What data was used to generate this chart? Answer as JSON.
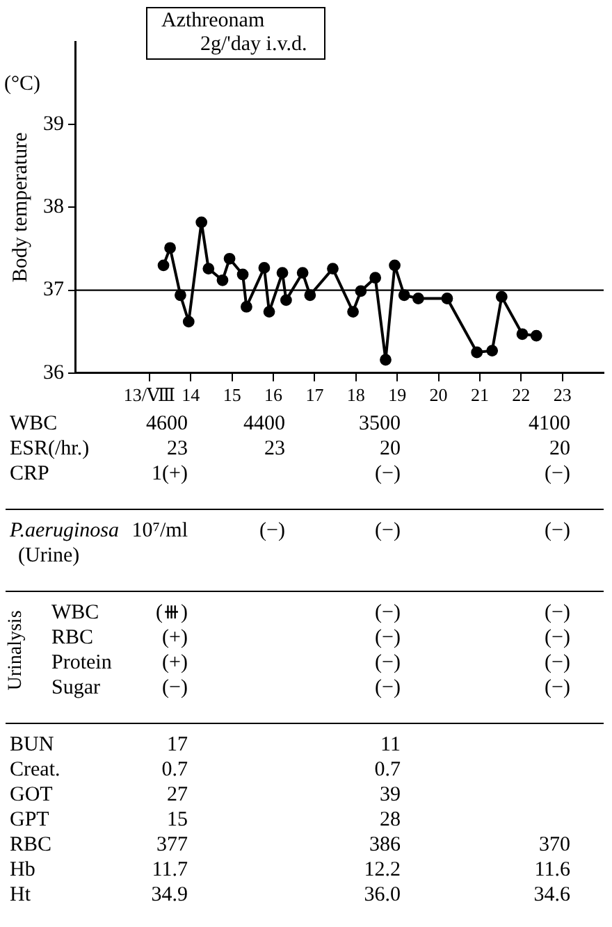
{
  "chart_data": [
    {
      "type": "line",
      "title": "Azthreonam\n2g/'day i.v.d.",
      "ylabel": "Body temperature",
      "annotations": [
        "(°C)"
      ],
      "x": [
        13.34,
        13.5,
        13.75,
        13.95,
        14.26,
        14.43,
        14.77,
        14.94,
        15.26,
        15.35,
        15.78,
        15.9,
        16.22,
        16.31,
        16.71,
        16.89,
        17.44,
        17.93,
        18.12,
        18.47,
        18.72,
        18.94,
        19.17,
        19.51,
        20.21,
        20.93,
        21.3,
        21.53,
        22.03,
        22.37
      ],
      "series": [
        {
          "color": "#000000",
          "values": [
            37.3,
            37.51,
            36.94,
            36.62,
            37.82,
            37.26,
            37.12,
            37.38,
            37.19,
            36.8,
            37.27,
            36.74,
            37.21,
            36.88,
            37.21,
            36.94,
            37.26,
            36.74,
            36.99,
            37.15,
            36.16,
            37.3,
            36.94,
            36.9,
            36.9,
            36.25,
            36.27,
            36.92,
            36.47,
            36.45
          ]
        }
      ],
      "xlim": [
        11.2,
        24
      ],
      "xticks": [
        {
          "value": 13,
          "label": "13/Ⅷ"
        },
        14,
        15,
        16,
        17,
        18,
        19,
        20,
        21,
        22,
        23
      ],
      "ylim": [
        36,
        40
      ],
      "yticks": [
        36,
        37,
        38,
        39
      ],
      "ref_lines": [
        {
          "axis": "y",
          "value": 37,
          "color": "#000000"
        }
      ],
      "marker": "circle",
      "line_style": "solid",
      "grid": false,
      "legend": false
    },
    {
      "type": "other",
      "annotations": [
        "WBC\t4600\t4400\t3500\t4100",
        "ESR(/hr.)\t23\t23\t20\t20",
        "CRP\t1(+)\t\t(−)\t(−)"
      ]
    },
    {
      "type": "other",
      "annotations": [
        "P.aeruginosa\n(Urine)\t10⁷/ml\t(−)\t(−)\t(−)"
      ]
    },
    {
      "type": "other",
      "annotations": [
        "Urinalysis",
        "WBC\t(⧻)\t\t(−)\t(−)",
        "RBC\t(+)\t\t(−)\t(−)",
        "Protein\t(+)\t\t(−)\t(−)",
        "Sugar\t(−)\t\t(−)\t(−)"
      ]
    },
    {
      "type": "other",
      "annotations": [
        "BUN\t17\t\t11\t",
        "Creat.\t0.7\t\t0.7\t",
        "GOT\t27\t\t39\t",
        "GPT\t15\t\t28\t",
        "RBC\t377\t\t386\t370",
        "Hb\t11.7\t\t12.2\t11.6",
        "Ht\t34.9\t\t36.0\t34.6"
      ]
    }
  ]
}
